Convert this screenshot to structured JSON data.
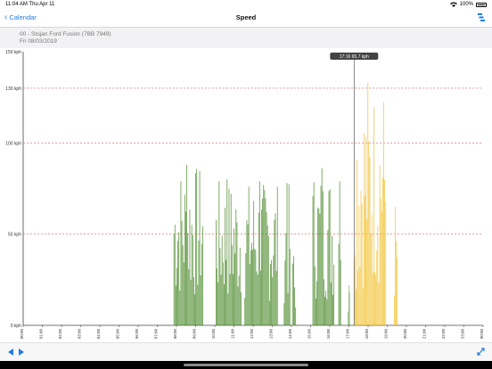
{
  "status_bar": {
    "time": "11:04 AM Thu Apr 11",
    "battery": "100%"
  },
  "nav": {
    "back_label": "Calendar",
    "title": "Speed"
  },
  "header": {
    "vehicle": "00 - Stojan Ford Fusion (7BB 7949)",
    "date": "Fri 08/03/2019"
  },
  "chart_data": {
    "type": "bar",
    "ylabel_unit": "kph",
    "ylim": [
      0,
      150
    ],
    "y_ticks": [
      "0 kph",
      "50 kph",
      "100 kph",
      "130 kph",
      "150 kph"
    ],
    "y_tick_values": [
      0,
      50,
      100,
      130,
      150
    ],
    "reference_lines": [
      50,
      100,
      130
    ],
    "x_tick_labels": [
      "00:00",
      "01:00",
      "02:00",
      "03:00",
      "04:00",
      "05:00",
      "06:00",
      "07:00",
      "08:00",
      "09:00",
      "10:00",
      "11:00",
      "12:00",
      "13:00",
      "14:00",
      "15:00",
      "16:00",
      "17:00",
      "18:00",
      "19:00",
      "20:00",
      "21:00",
      "22:00",
      "23:00",
      "00:00"
    ],
    "cursor": {
      "time": "17:16",
      "speed": "65.7 kph",
      "hour": 17.27
    },
    "grid": true,
    "colors": {
      "normal": "#4a8a2a",
      "highlight": "#f2c230",
      "reference": "#e06060"
    },
    "series": [
      {
        "color": "#4a8a2a",
        "segments": [
          {
            "start": 7.85,
            "end": 9.4,
            "peak": 88
          },
          {
            "start": 10.05,
            "end": 11.4,
            "peak": 80
          },
          {
            "start": 11.55,
            "end": 13.3,
            "peak": 79
          },
          {
            "start": 13.6,
            "end": 13.95,
            "peak": 78
          },
          {
            "start": 14.05,
            "end": 14.25,
            "peak": 38
          },
          {
            "start": 15.1,
            "end": 16.25,
            "peak": 86
          },
          {
            "start": 16.45,
            "end": 16.6,
            "peak": 79
          },
          {
            "start": 16.95,
            "end": 17.05,
            "peak": 22
          }
        ]
      },
      {
        "color": "#f2c230",
        "segments": [
          {
            "start": 17.25,
            "end": 18.95,
            "peak": 133
          },
          {
            "start": 19.35,
            "end": 19.55,
            "peak": 65
          }
        ]
      }
    ]
  },
  "bottom_bar": {
    "prev_icon": "triangle-left",
    "next_icon": "triangle-right",
    "expand_icon": "diagonal-arrows"
  }
}
